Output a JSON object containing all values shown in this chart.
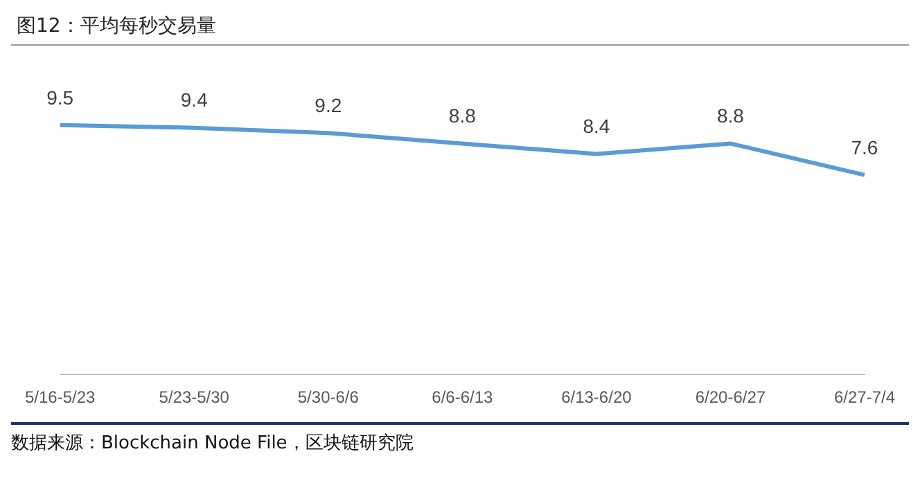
{
  "chart_data": {
    "type": "line",
    "title": "图12：平均每秒交易量",
    "categories": [
      "5/16-5/23",
      "5/23-5/30",
      "5/30-6/6",
      "6/6-6/13",
      "6/13-6/20",
      "6/20-6/27",
      "6/27-7/4"
    ],
    "series": [
      {
        "color": "#5b9bd5",
        "values": [
          9.5,
          9.4,
          9.2,
          8.8,
          8.4,
          8.8,
          7.6
        ]
      }
    ],
    "data_labels": true,
    "grid": false,
    "legend": false,
    "marker": "none",
    "line_style": "solid",
    "annotations": [
      "数据来源：Blockchain Node File，区块链研究院"
    ]
  }
}
